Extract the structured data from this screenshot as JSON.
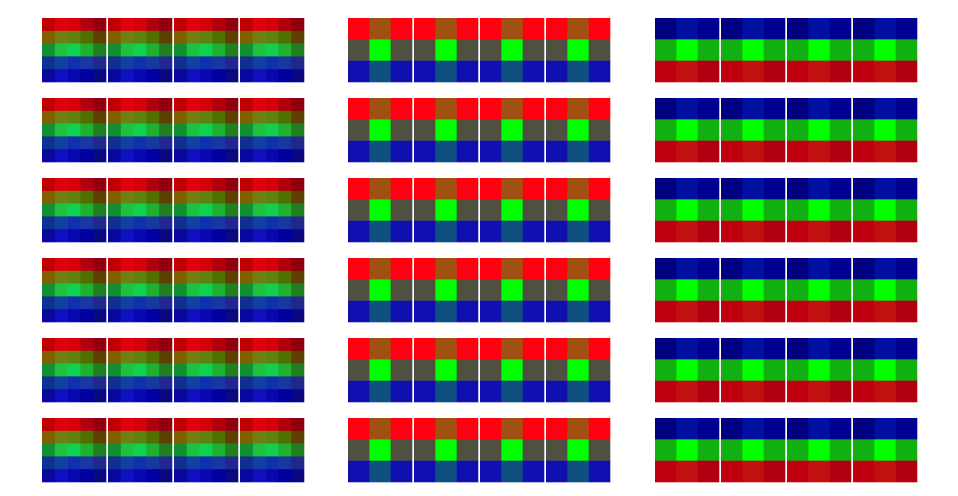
{
  "figure": {
    "panel_rows": 6,
    "blocks_per_panel": 4,
    "grid_columns": [
      {
        "size": 5,
        "colors": [
          [
            "#c00000",
            "#e00010",
            "#d80008",
            "#b00010",
            "#900010"
          ],
          [
            "#806000",
            "#708010",
            "#608010",
            "#507000",
            "#604000"
          ],
          [
            "#109030",
            "#20c040",
            "#10d050",
            "#20b030",
            "#208020"
          ],
          [
            "#103090",
            "#1040a0",
            "#1030b0",
            "#1838a0",
            "#202890"
          ],
          [
            "#0808a0",
            "#1010c0",
            "#0808b0",
            "#0000a0",
            "#080880"
          ]
        ]
      },
      {
        "size": 3,
        "colors": [
          [
            "#ff0010",
            "#a05010",
            "#ff0010"
          ],
          [
            "#505040",
            "#00ff00",
            "#505040"
          ],
          [
            "#1010b0",
            "#105080",
            "#1010b0"
          ]
        ]
      },
      {
        "size": 3,
        "colors": [
          [
            "#000080",
            "#0010a0",
            "#000090"
          ],
          [
            "#10b010",
            "#00ff00",
            "#10b010"
          ],
          [
            "#c00010",
            "#c01010",
            "#b00010"
          ]
        ]
      }
    ]
  }
}
